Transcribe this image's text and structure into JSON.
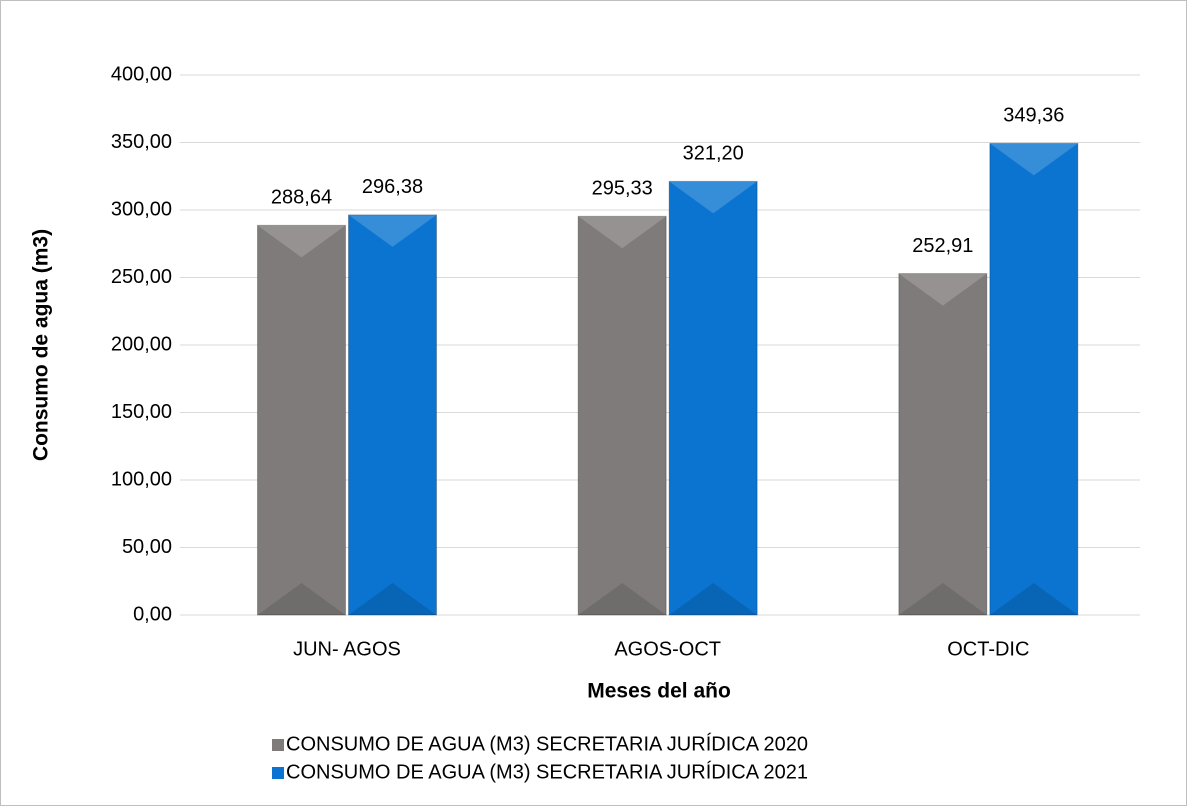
{
  "chart_data": {
    "type": "bar",
    "x_label": "Meses del año",
    "y_label": "Consumo de agua (m3)",
    "categories": [
      "JUN- AGOS",
      "AGOS-OCT",
      "OCT-DIC"
    ],
    "series": [
      {
        "name": "CONSUMO DE AGUA (M3) SECRETARIA JURÍDICA 2020",
        "color": "#7f7b7b",
        "values": [
          288.64,
          295.33,
          252.91
        ],
        "value_labels": [
          "288,64",
          "295,33",
          "252,91"
        ]
      },
      {
        "name": "CONSUMO DE AGUA (M3) SECRETARIA JURÍDICA 2021",
        "color": "#0a74d0",
        "values": [
          296.38,
          321.2,
          349.36
        ],
        "value_labels": [
          "296,38",
          "321,20",
          "349,36"
        ]
      }
    ],
    "ylim": [
      0,
      400
    ],
    "yticks": [
      {
        "value": 0,
        "label": "0,00"
      },
      {
        "value": 50,
        "label": "50,00"
      },
      {
        "value": 100,
        "label": "100,00"
      },
      {
        "value": 150,
        "label": "150,00"
      },
      {
        "value": 200,
        "label": "200,00"
      },
      {
        "value": 250,
        "label": "250,00"
      },
      {
        "value": 300,
        "label": "300,00"
      },
      {
        "value": 350,
        "label": "350,00"
      },
      {
        "value": 400,
        "label": "400,00"
      }
    ],
    "grid": true,
    "legend": "bottom"
  }
}
